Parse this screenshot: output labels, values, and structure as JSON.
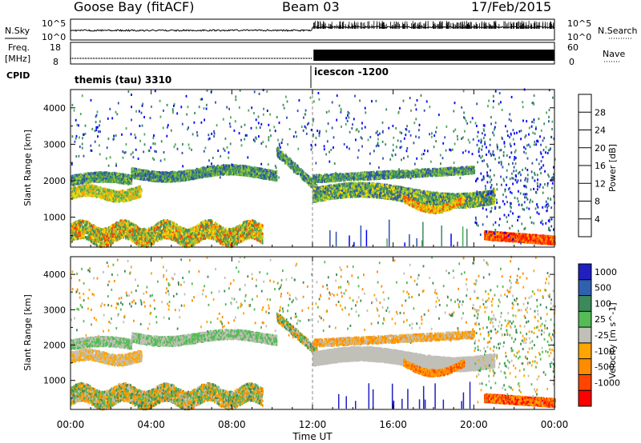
{
  "header": {
    "title_left": "Goose Bay (fitACF)",
    "title_mid": "Beam 03",
    "title_right": "17/Feb/2015"
  },
  "panels": {
    "nsky": {
      "label": "N.Sky",
      "ticks": [
        "10^5",
        "10^0"
      ]
    },
    "nsearch": {
      "label": "N.Search",
      "ticks": [
        "10^5",
        "10^0"
      ]
    },
    "freq": {
      "label_top": "Freq.",
      "label_bottom": "[MHz]",
      "ticks": [
        "18",
        "8"
      ]
    },
    "nave": {
      "label": "Nave",
      "ticks": [
        "60",
        "0"
      ]
    },
    "cpid": {
      "label": "CPID",
      "mode1": "themis (tau) 3310",
      "mode2": "icescon -1200"
    }
  },
  "colors": {
    "power": [
      "#0000ff",
      "#2f4faf",
      "#3d8a5f",
      "#4fa85a",
      "#9acd32",
      "#ffd700",
      "#ffa500",
      "#ff4500",
      "#ff0000"
    ],
    "velocity": [
      "#2020c0",
      "#3060b0",
      "#3a8a5a",
      "#55bb55",
      "#c0c0b8",
      "#ffa500",
      "#ff8c00",
      "#ff4500",
      "#ff0000"
    ]
  },
  "chart_data": [
    {
      "type": "heatmap",
      "name": "power",
      "ylabel": "Slant Range [km]",
      "yticks": [
        "4000",
        "3000",
        "2000",
        "1000"
      ],
      "ylim": [
        180,
        4500
      ],
      "colorbar_label": "Power [dB]",
      "colorbar_ticks": [
        "28",
        "24",
        "20",
        "16",
        "12",
        "8",
        "4"
      ],
      "colorbar_range": [
        0,
        32
      ]
    },
    {
      "type": "heatmap",
      "name": "velocity",
      "ylabel": "Slant Range [km]",
      "yticks": [
        "4000",
        "3000",
        "2000",
        "1000"
      ],
      "ylim": [
        180,
        4500
      ],
      "colorbar_label": "Velocity [m s^-1]",
      "colorbar_ticks": [
        "1000",
        "500",
        "100",
        "25",
        "-25",
        "-100",
        "-500",
        "-1000"
      ]
    }
  ],
  "xaxis": {
    "label": "Time UT",
    "ticks": [
      "00:00",
      "04:00",
      "08:00",
      "12:00",
      "16:00",
      "20:00",
      "00:00"
    ],
    "xlim_hours": [
      0,
      24
    ]
  }
}
